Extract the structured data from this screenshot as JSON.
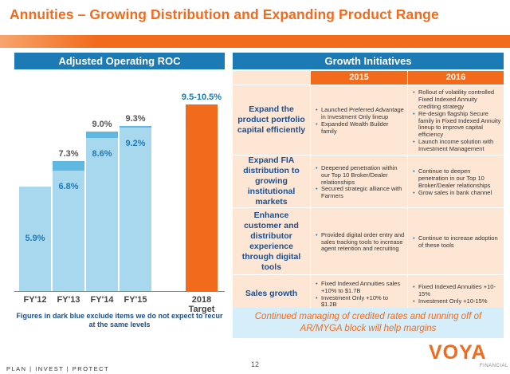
{
  "title": "Annuities – Growing Distribution and Expanding Product Range",
  "left_panel": {
    "header": "Adjusted Operating ROC",
    "footnote": "Figures in dark blue exclude items we do not expect to recur at the same levels"
  },
  "chart_data": {
    "type": "bar",
    "title": "Adjusted Operating ROC",
    "categories": [
      "FY'12",
      "FY'13",
      "FY'14",
      "FY'15",
      "2018 Target"
    ],
    "series": [
      {
        "values": [
          5.9,
          6.8,
          8.6,
          9.2,
          null
        ],
        "labels": [
          "5.9%",
          "6.8%",
          "8.6%",
          "9.2%",
          ""
        ]
      },
      {
        "values": [
          null,
          7.3,
          9.0,
          9.3,
          null
        ],
        "labels": [
          "",
          "7.3%",
          "9.0%",
          "9.3%",
          ""
        ]
      },
      {
        "values": [
          null,
          null,
          null,
          null,
          10.5
        ],
        "labels": [
          "",
          "",
          "",
          "",
          "9.5-10.5%"
        ]
      }
    ],
    "ylim": [
      0,
      11
    ],
    "colors": {
      "adjusted": "#a8d8ee",
      "reported": "#5fb8e0",
      "target": "#f26b1d"
    }
  },
  "right_panel": {
    "header": "Growth Initiatives",
    "columns": [
      "2015",
      "2016"
    ],
    "rows": [
      {
        "label": "Expand the product portfolio capital efficiently",
        "y2015": [
          "Launched Preferred Advantage in Investment Only lineup",
          "Expanded Wealth Builder family"
        ],
        "y2016": [
          "Rollout of volatility controlled Fixed Indexed Annuity crediting strategy",
          "Re-design flagship Secure family in Fixed Indexed Annuity lineup to improve capital efficiency",
          "Launch income solution with Investment Management"
        ]
      },
      {
        "label": "Expand FIA distribution to growing institutional markets",
        "y2015": [
          "Deepened penetration within our Top 10 Broker/Dealer relationships",
          "Secured strategic alliance with Farmers"
        ],
        "y2016": [
          "Continue to deepen penetration in our Top 10 Broker/Dealer relationships",
          "Grow sales in bank channel"
        ]
      },
      {
        "label": "Enhance customer and distributor experience through digital tools",
        "y2015": [
          "Provided digital order entry and sales tracking tools to increase agent retention and recruiting"
        ],
        "y2016": [
          "Continue to increase adoption of these tools"
        ]
      },
      {
        "label": "Sales growth",
        "y2015": [
          "Fixed Indexed Annuities sales +10% to $1.7B",
          "Investment Only +10% to $1.2B"
        ],
        "y2016": [
          "Fixed Indexed Annuities +10-15%",
          "Investment Only +10-15%"
        ]
      }
    ],
    "callout": "Continued managing of credited rates and running off of AR/MYGA block will help margins"
  },
  "footer": {
    "tagline": "PLAN  |  INVEST  |  PROTECT",
    "page_number": "12",
    "logo_word": "VOYA",
    "logo_sub": "FINANCIAL"
  }
}
